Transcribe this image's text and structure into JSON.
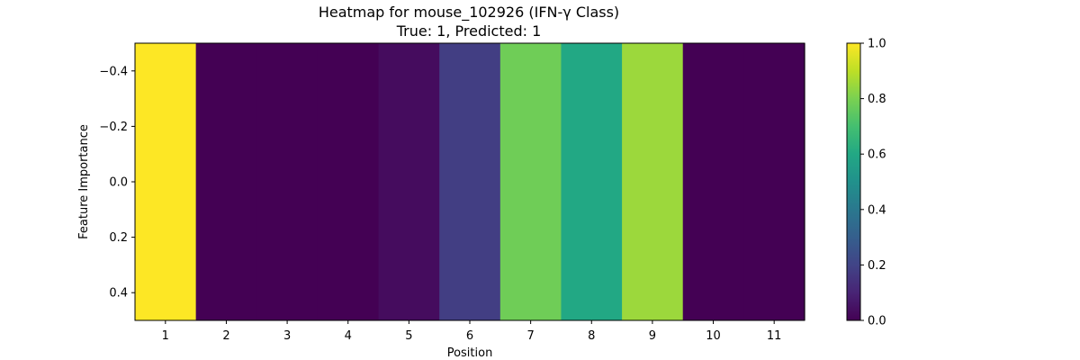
{
  "chart_data": {
    "type": "heatmap",
    "title": "Heatmap for mouse_102926 (IFN-γ Class)",
    "subtitle": "True: 1, Predicted: 1",
    "xlabel": "Position",
    "ylabel": "Feature Importance",
    "x_categories": [
      "1",
      "2",
      "3",
      "4",
      "5",
      "6",
      "7",
      "8",
      "9",
      "10",
      "11"
    ],
    "values": [
      1.0,
      0.0,
      0.0,
      0.0,
      0.03,
      0.18,
      0.78,
      0.6,
      0.85,
      0.0,
      0.0
    ],
    "y_range": [
      -0.5,
      0.5
    ],
    "y_ticks": [
      "-0.4",
      "-0.2",
      "0.0",
      "0.2",
      "0.4"
    ],
    "y_inverted": true,
    "colorbar": {
      "colormap": "viridis",
      "range": [
        0.0,
        1.0
      ],
      "ticks": [
        "0.0",
        "0.2",
        "0.4",
        "0.6",
        "0.8",
        "1.0"
      ]
    },
    "grid": false,
    "legend": "none"
  }
}
